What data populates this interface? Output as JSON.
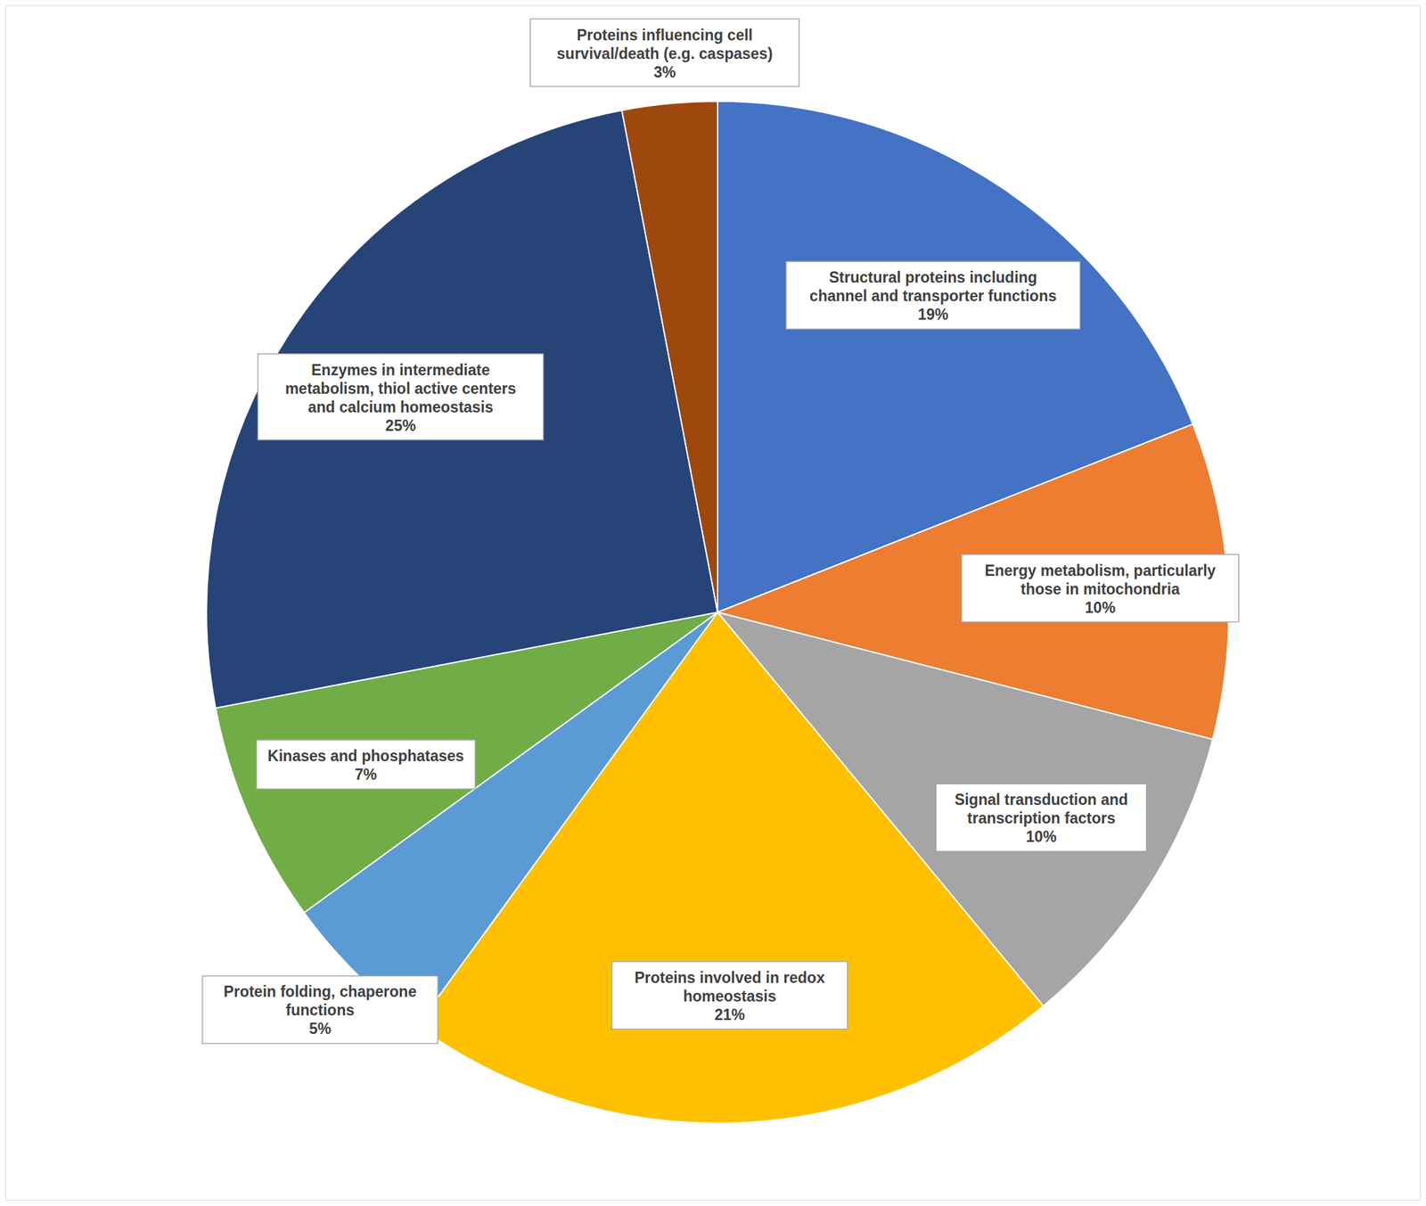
{
  "chart_data": {
    "type": "pie",
    "categories": [
      "Structural proteins including channel and transporter functions",
      "Energy metabolism, particularly those in mitochondria",
      "Signal transduction and transcription factors",
      "Proteins involved in redox homeostasis",
      "Protein folding, chaperone functions",
      "Kinases and phosphatases",
      "Enzymes in intermediate metabolism, thiol active centers and calcium homeostasis",
      "Proteins influencing cell survival/death (e.g. caspases)"
    ],
    "values": [
      19,
      10,
      10,
      21,
      5,
      7,
      25,
      3
    ],
    "value_labels": [
      "19%",
      "10%",
      "10%",
      "21%",
      "5%",
      "7%",
      "25%",
      "3%"
    ],
    "colors": [
      "#4472c4",
      "#ed7d31",
      "#a5a5a5",
      "#ffc000",
      "#5b9bd5",
      "#70ad47",
      "#264478",
      "#9e480e"
    ],
    "data_labels": true
  }
}
